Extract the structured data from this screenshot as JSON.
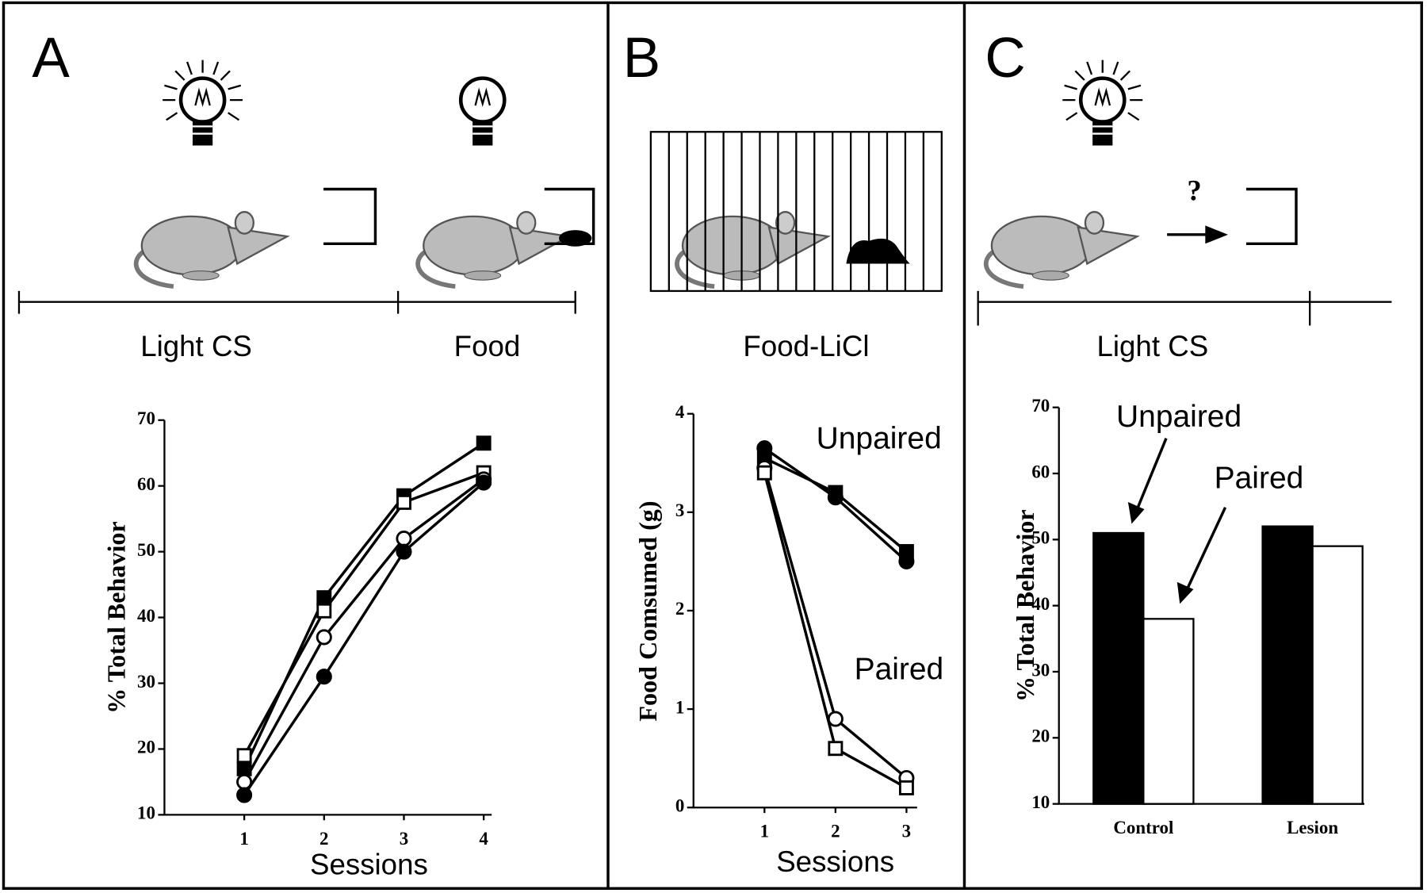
{
  "chart_data": [
    {
      "type": "line",
      "panel": "A",
      "annotations": [
        "Light CS",
        "Food"
      ],
      "xlabel": "Sessions",
      "ylabel": "% Total Behavior",
      "x": [
        1,
        2,
        3,
        4
      ],
      "xlim": [
        0,
        4.1
      ],
      "xticks": [
        1,
        2,
        3,
        4
      ],
      "ylim": [
        10,
        70
      ],
      "yticks": [
        10,
        20,
        30,
        40,
        50,
        60,
        70
      ],
      "series": [
        {
          "color": "#000000",
          "marker": "square",
          "filled": true,
          "values": [
            17,
            43,
            58.5,
            66.5
          ]
        },
        {
          "color": "#000000",
          "marker": "square",
          "filled": false,
          "values": [
            19,
            41,
            57.5,
            62
          ]
        },
        {
          "color": "#000000",
          "marker": "circle",
          "filled": false,
          "values": [
            15,
            37,
            52,
            61
          ]
        },
        {
          "color": "#000000",
          "marker": "circle",
          "filled": true,
          "values": [
            13,
            31,
            50,
            60.5
          ]
        }
      ]
    },
    {
      "type": "line",
      "panel": "B",
      "annotations": [
        "Food-LiCl",
        "Unpaired",
        "Paired"
      ],
      "xlabel": "Sessions",
      "ylabel": "Food Comsumed (g)",
      "x": [
        1,
        2,
        3
      ],
      "xlim": [
        0,
        3.15
      ],
      "xticks": [
        1,
        2,
        3
      ],
      "ylim": [
        0,
        4
      ],
      "yticks": [
        0,
        1,
        2,
        3,
        4
      ],
      "series": [
        {
          "color": "#000000",
          "marker": "square",
          "filled": true,
          "values": [
            3.55,
            3.2,
            2.6
          ]
        },
        {
          "color": "#000000",
          "marker": "circle",
          "filled": true,
          "values": [
            3.65,
            3.15,
            2.5
          ]
        },
        {
          "color": "#000000",
          "marker": "circle",
          "filled": false,
          "values": [
            3.45,
            0.9,
            0.3
          ]
        },
        {
          "color": "#000000",
          "marker": "square",
          "filled": false,
          "values": [
            3.4,
            0.6,
            0.2
          ]
        }
      ]
    },
    {
      "type": "bar",
      "panel": "C",
      "annotations": [
        "Light CS",
        "?",
        "Unpaired",
        "Paired"
      ],
      "ylabel": "% Total Behavior",
      "categories": [
        "Control",
        "Lesion"
      ],
      "ylim": [
        10,
        70
      ],
      "yticks": [
        10,
        20,
        30,
        40,
        50,
        60,
        70
      ],
      "series": [
        {
          "color": "#000000",
          "values": [
            51,
            52
          ]
        },
        {
          "color": "#ffffff",
          "values": [
            38,
            49
          ]
        }
      ]
    }
  ]
}
